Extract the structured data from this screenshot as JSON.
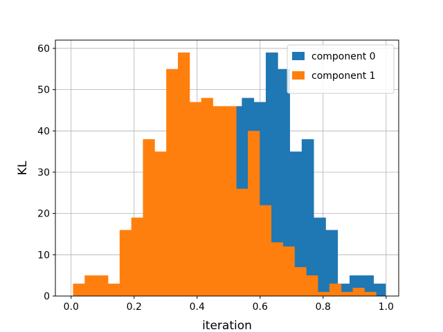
{
  "chart_data": {
    "type": "bar",
    "xlabel": "iteration",
    "ylabel": "KL",
    "xlim": [
      -0.05,
      1.04
    ],
    "ylim": [
      0,
      62
    ],
    "xticks": [
      0.0,
      0.2,
      0.4,
      0.6,
      0.8,
      1.0
    ],
    "xtick_labels": [
      "0.0",
      "0.2",
      "0.4",
      "0.6",
      "0.8",
      "1.0"
    ],
    "yticks": [
      0,
      10,
      20,
      30,
      40,
      50,
      60
    ],
    "ytick_labels": [
      "0",
      "10",
      "20",
      "30",
      "40",
      "50",
      "60"
    ],
    "grid": true,
    "legend": "top-right",
    "series": [
      {
        "name": "component 0",
        "color": "#1f77b4",
        "bins": [
          [
            0.504,
            0.542,
            46
          ],
          [
            0.542,
            0.58,
            48
          ],
          [
            0.58,
            0.618,
            47
          ],
          [
            0.618,
            0.656,
            59
          ],
          [
            0.656,
            0.694,
            55
          ],
          [
            0.694,
            0.732,
            35
          ],
          [
            0.732,
            0.77,
            38
          ],
          [
            0.77,
            0.808,
            19
          ],
          [
            0.808,
            0.846,
            16
          ],
          [
            0.846,
            0.884,
            3
          ],
          [
            0.884,
            0.922,
            5
          ],
          [
            0.922,
            0.96,
            5
          ],
          [
            0.96,
            0.998,
            3
          ]
        ]
      },
      {
        "name": "component 1",
        "color": "#ff7f0e",
        "bins": [
          [
            0.006,
            0.043,
            3
          ],
          [
            0.043,
            0.08,
            5
          ],
          [
            0.08,
            0.117,
            5
          ],
          [
            0.117,
            0.154,
            3
          ],
          [
            0.154,
            0.191,
            16
          ],
          [
            0.191,
            0.228,
            19
          ],
          [
            0.228,
            0.265,
            38
          ],
          [
            0.265,
            0.302,
            35
          ],
          [
            0.302,
            0.339,
            55
          ],
          [
            0.339,
            0.376,
            59
          ],
          [
            0.376,
            0.413,
            47
          ],
          [
            0.413,
            0.45,
            48
          ],
          [
            0.45,
            0.487,
            46
          ],
          [
            0.487,
            0.524,
            46
          ],
          [
            0.524,
            0.561,
            26
          ],
          [
            0.561,
            0.598,
            40
          ],
          [
            0.598,
            0.635,
            22
          ],
          [
            0.635,
            0.672,
            13
          ],
          [
            0.672,
            0.709,
            12
          ],
          [
            0.709,
            0.746,
            7
          ],
          [
            0.746,
            0.783,
            5
          ],
          [
            0.783,
            0.82,
            1
          ],
          [
            0.82,
            0.857,
            3
          ],
          [
            0.857,
            0.894,
            1
          ],
          [
            0.894,
            0.931,
            2
          ],
          [
            0.931,
            0.968,
            1
          ]
        ]
      }
    ]
  }
}
